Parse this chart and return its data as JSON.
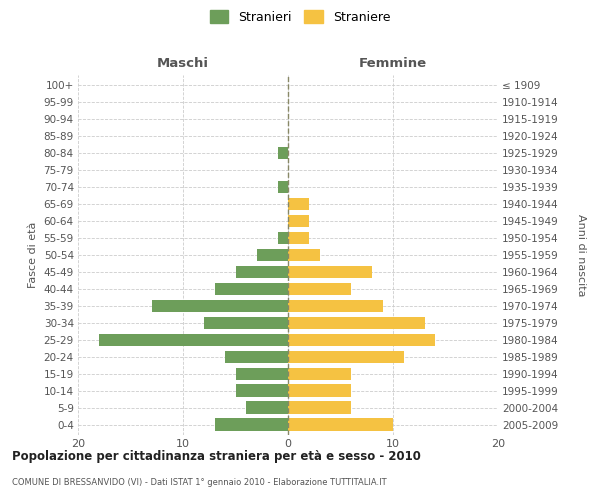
{
  "age_groups": [
    "0-4",
    "5-9",
    "10-14",
    "15-19",
    "20-24",
    "25-29",
    "30-34",
    "35-39",
    "40-44",
    "45-49",
    "50-54",
    "55-59",
    "60-64",
    "65-69",
    "70-74",
    "75-79",
    "80-84",
    "85-89",
    "90-94",
    "95-99",
    "100+"
  ],
  "birth_years": [
    "2005-2009",
    "2000-2004",
    "1995-1999",
    "1990-1994",
    "1985-1989",
    "1980-1984",
    "1975-1979",
    "1970-1974",
    "1965-1969",
    "1960-1964",
    "1955-1959",
    "1950-1954",
    "1945-1949",
    "1940-1944",
    "1935-1939",
    "1930-1934",
    "1925-1929",
    "1920-1924",
    "1915-1919",
    "1910-1914",
    "≤ 1909"
  ],
  "maschi": [
    7,
    4,
    5,
    5,
    6,
    18,
    8,
    13,
    7,
    5,
    3,
    1,
    0,
    0,
    1,
    0,
    1,
    0,
    0,
    0,
    0
  ],
  "femmine": [
    10,
    6,
    6,
    6,
    11,
    14,
    13,
    9,
    6,
    8,
    3,
    2,
    2,
    2,
    0,
    0,
    0,
    0,
    0,
    0,
    0
  ],
  "maschi_color": "#6d9e5a",
  "femmine_color": "#f5c242",
  "title": "Popolazione per cittadinanza straniera per età e sesso - 2010",
  "subtitle": "COMUNE DI BRESSANVIDO (VI) - Dati ISTAT 1° gennaio 2010 - Elaborazione TUTTITALIA.IT",
  "xlabel_left": "Maschi",
  "xlabel_right": "Femmine",
  "ylabel_left": "Fasce di età",
  "ylabel_right": "Anni di nascita",
  "legend_maschi": "Stranieri",
  "legend_femmine": "Straniere",
  "xlim": 20,
  "background_color": "#ffffff",
  "grid_color": "#cccccc"
}
